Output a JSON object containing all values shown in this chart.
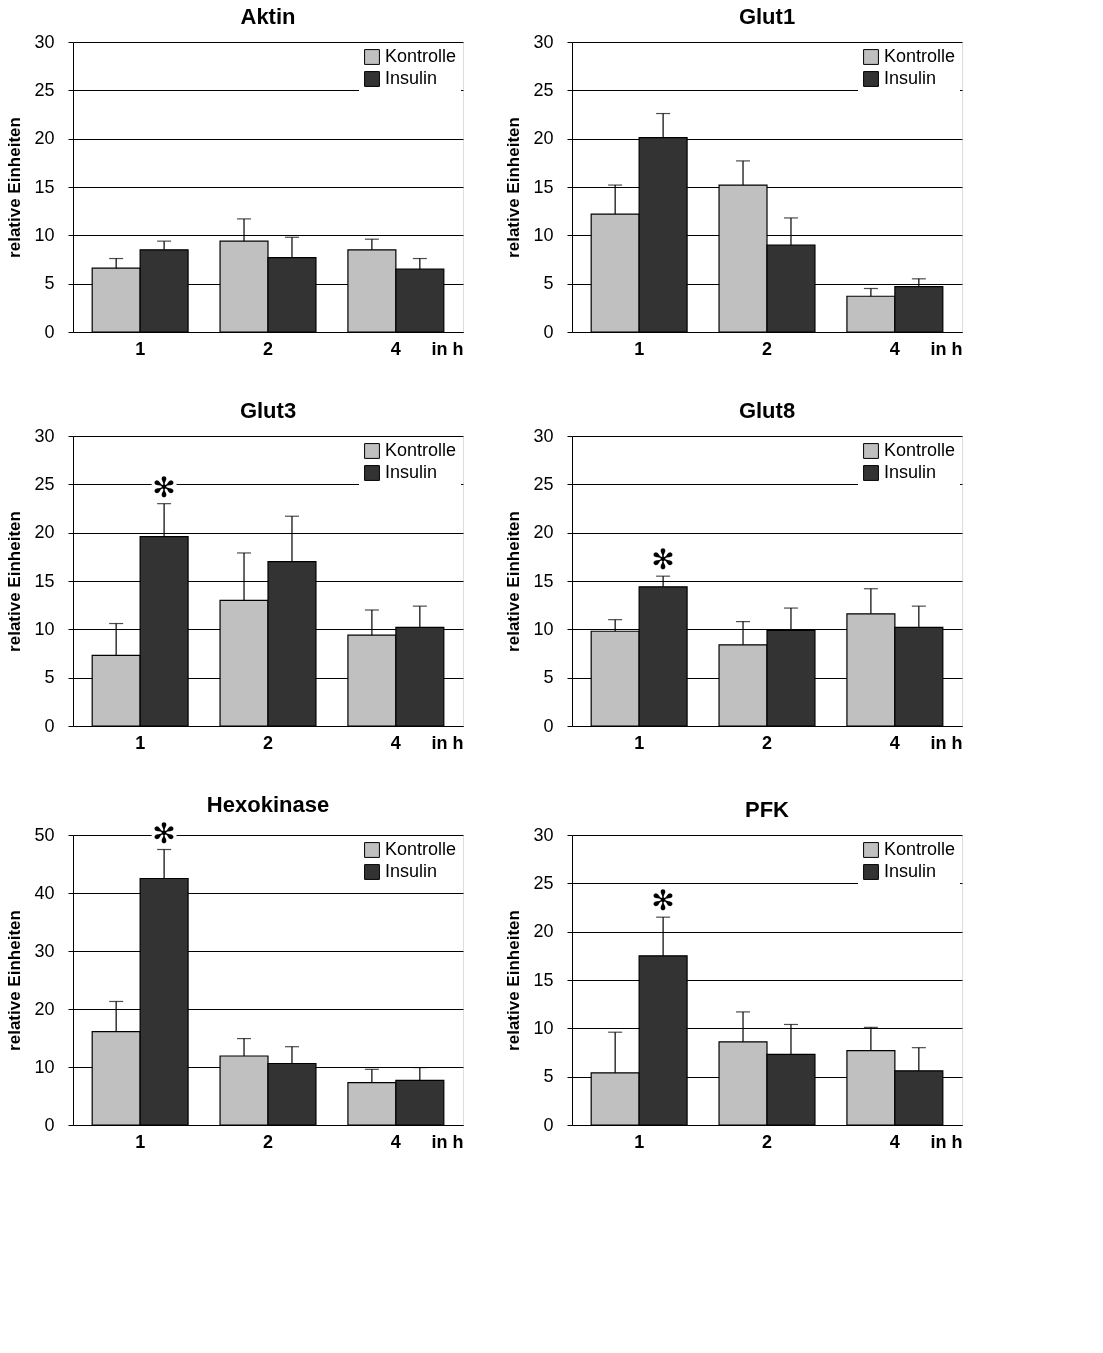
{
  "chart_data": [
    {
      "type": "bar",
      "title": "Aktin",
      "categories": [
        "1",
        "2",
        "4"
      ],
      "xlabel": "in h",
      "ylabel": "relative Einheiten",
      "ylim": [
        0,
        30
      ],
      "yticks": [
        0,
        5,
        10,
        15,
        20,
        25,
        30
      ],
      "grid": "y",
      "legend": "top right",
      "series": [
        {
          "name": "Kontrolle",
          "color": "#c0c0c0",
          "values": [
            6.6,
            9.4,
            8.5
          ],
          "errors": [
            1.0,
            2.3,
            1.1
          ]
        },
        {
          "name": "Insulin",
          "color": "#333333",
          "values": [
            8.5,
            7.7,
            6.5
          ],
          "errors": [
            0.9,
            2.1,
            1.1
          ]
        }
      ]
    },
    {
      "type": "bar",
      "title": "Glut1",
      "categories": [
        "1",
        "2",
        "4"
      ],
      "xlabel": "in h",
      "ylabel": "relative Einheiten",
      "ylim": [
        0,
        30
      ],
      "yticks": [
        0,
        5,
        10,
        15,
        20,
        25,
        30
      ],
      "grid": "y",
      "legend": "top right",
      "series": [
        {
          "name": "Kontrolle",
          "color": "#c0c0c0",
          "values": [
            12.2,
            15.2,
            3.7
          ],
          "errors": [
            3.0,
            2.5,
            0.8
          ]
        },
        {
          "name": "Insulin",
          "color": "#333333",
          "values": [
            20.1,
            9.0,
            4.7
          ],
          "errors": [
            2.5,
            2.8,
            0.8
          ]
        }
      ]
    },
    {
      "type": "bar",
      "title": "Glut3",
      "categories": [
        "1",
        "2",
        "4"
      ],
      "xlabel": "in h",
      "ylabel": "relative Einheiten",
      "ylim": [
        0,
        30
      ],
      "yticks": [
        0,
        5,
        10,
        15,
        20,
        25,
        30
      ],
      "grid": "y",
      "legend": "top right",
      "series": [
        {
          "name": "Kontrolle",
          "color": "#c0c0c0",
          "values": [
            7.3,
            13.0,
            9.4
          ],
          "errors": [
            3.3,
            4.9,
            2.6
          ]
        },
        {
          "name": "Insulin",
          "color": "#333333",
          "values": [
            19.6,
            17.0,
            10.2
          ],
          "errors": [
            3.4,
            4.7,
            2.2
          ]
        }
      ],
      "annotations": [
        {
          "text": "✻",
          "x": "1",
          "y": 19.6
        }
      ]
    },
    {
      "type": "bar",
      "title": "Glut8",
      "categories": [
        "1",
        "2",
        "4"
      ],
      "xlabel": "in h",
      "ylabel": "relative Einheiten",
      "ylim": [
        0,
        30
      ],
      "yticks": [
        0,
        5,
        10,
        15,
        20,
        25,
        30
      ],
      "grid": "y",
      "legend": "top right",
      "series": [
        {
          "name": "Kontrolle",
          "color": "#c0c0c0",
          "values": [
            9.8,
            8.4,
            11.6
          ],
          "errors": [
            1.2,
            2.4,
            2.6
          ]
        },
        {
          "name": "Insulin",
          "color": "#333333",
          "values": [
            14.4,
            9.9,
            10.2
          ],
          "errors": [
            1.1,
            2.3,
            2.2
          ]
        }
      ],
      "annotations": [
        {
          "text": "✻",
          "x": "1",
          "y": 14.4
        }
      ]
    },
    {
      "type": "bar",
      "title": "Hexokinase",
      "categories": [
        "1",
        "2",
        "4"
      ],
      "xlabel": "in h",
      "ylabel": "relative Einheiten",
      "ylim": [
        0,
        50
      ],
      "yticks": [
        0,
        10,
        20,
        30,
        40,
        50
      ],
      "grid": "y",
      "legend": "top right",
      "series": [
        {
          "name": "Kontrolle",
          "color": "#c0c0c0",
          "values": [
            16.1,
            11.9,
            7.3
          ],
          "errors": [
            5.2,
            3.0,
            2.3
          ]
        },
        {
          "name": "Insulin",
          "color": "#333333",
          "values": [
            42.5,
            10.6,
            7.7
          ],
          "errors": [
            5.0,
            2.9,
            2.2
          ]
        }
      ],
      "annotations": [
        {
          "text": "✻",
          "x": "1",
          "y": 42.5
        }
      ]
    },
    {
      "type": "bar",
      "title": "PFK",
      "categories": [
        "1",
        "2",
        "4"
      ],
      "xlabel": "in h",
      "ylabel": "relative Einheiten",
      "ylim": [
        0,
        30
      ],
      "yticks": [
        0,
        5,
        10,
        15,
        20,
        25,
        30
      ],
      "grid": "y",
      "legend": "top right",
      "series": [
        {
          "name": "Kontrolle",
          "color": "#c0c0c0",
          "values": [
            5.4,
            8.6,
            7.7
          ],
          "errors": [
            4.2,
            3.1,
            2.4
          ]
        },
        {
          "name": "Insulin",
          "color": "#333333",
          "values": [
            17.5,
            7.3,
            5.6
          ],
          "errors": [
            4.0,
            3.1,
            2.4
          ]
        }
      ],
      "annotations": [
        {
          "text": "✻",
          "x": "1",
          "y": 17.5
        }
      ]
    }
  ]
}
